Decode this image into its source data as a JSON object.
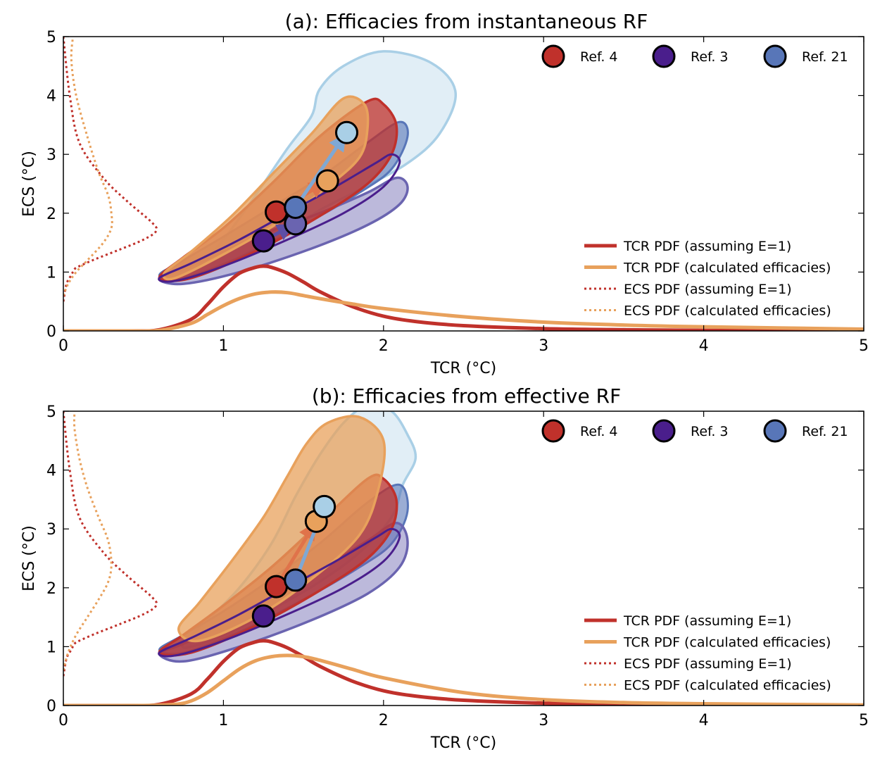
{
  "chart_data": [
    {
      "type": "line",
      "title": "(a): Efficacies from instantaneous RF",
      "xlabel": "TCR ($^\\circ$C)",
      "ylabel": "ECS ($^\\circ$C)",
      "xlabel_text": "TCR (°C)",
      "ylabel_text": "ECS (°C)",
      "xlim": [
        0,
        5
      ],
      "ylim": [
        0,
        5
      ],
      "xticks": [
        "0",
        "1",
        "2",
        "3",
        "4",
        "5"
      ],
      "yticks": [
        "0",
        "1",
        "2",
        "3",
        "4",
        "5"
      ],
      "grid": false,
      "markers_legend": [
        "Ref. 4",
        "Ref. 3",
        "Ref. 21"
      ],
      "markers_legend_position": "top-right",
      "lines_legend": [
        "TCR PDF (assuming E=1)",
        "TCR PDF (calculated efficacies)",
        "ECS PDF (assuming E=1)",
        "ECS PDF (calculated efficacies)"
      ],
      "lines_legend_position": "lower-right",
      "points": [
        {
          "ref": "Ref. 4",
          "variant": "assuming E=1",
          "x": 1.33,
          "y": 2.02
        },
        {
          "ref": "Ref. 4",
          "variant": "calculated efficacies",
          "x": 1.65,
          "y": 2.55
        },
        {
          "ref": "Ref. 3",
          "variant": "assuming E=1",
          "x": 1.25,
          "y": 1.53
        },
        {
          "ref": "Ref. 3",
          "variant": "calculated efficacies",
          "x": 1.45,
          "y": 1.82
        },
        {
          "ref": "Ref. 21",
          "variant": "assuming E=1",
          "x": 1.45,
          "y": 2.1
        },
        {
          "ref": "Ref. 21",
          "variant": "calculated efficacies",
          "x": 1.77,
          "y": 3.37
        }
      ],
      "series": [
        {
          "name": "TCR PDF (assuming E=1)",
          "x": [
            0,
            0.4,
            0.6,
            0.8,
            0.9,
            1.0,
            1.1,
            1.2,
            1.25,
            1.3,
            1.4,
            1.5,
            1.6,
            1.8,
            2.0,
            2.2,
            2.5,
            3.0,
            3.5,
            4.0,
            5.0
          ],
          "y": [
            0,
            0,
            0.02,
            0.2,
            0.45,
            0.75,
            0.98,
            1.08,
            1.1,
            1.08,
            0.98,
            0.83,
            0.67,
            0.42,
            0.25,
            0.16,
            0.09,
            0.04,
            0.02,
            0.01,
            0
          ]
        },
        {
          "name": "TCR PDF (calculated efficacies)",
          "x": [
            0,
            0.4,
            0.6,
            0.8,
            0.9,
            1.0,
            1.1,
            1.2,
            1.3,
            1.4,
            1.5,
            1.6,
            1.8,
            2.0,
            2.5,
            3.0,
            3.5,
            4.0,
            5.0
          ],
          "y": [
            0,
            0,
            0.01,
            0.13,
            0.28,
            0.43,
            0.55,
            0.63,
            0.66,
            0.65,
            0.6,
            0.55,
            0.46,
            0.38,
            0.24,
            0.15,
            0.1,
            0.07,
            0.03
          ]
        },
        {
          "name": "ECS PDF (assuming E=1)",
          "x": [
            0,
            0.02,
            0.05,
            0.07,
            0.1,
            0.2,
            0.35,
            0.5,
            0.58,
            0.55,
            0.4,
            0.25,
            0.1,
            0.04,
            0
          ],
          "y": [
            0.5,
            0.8,
            0.95,
            1.05,
            1.1,
            1.22,
            1.38,
            1.55,
            1.7,
            1.85,
            2.2,
            2.6,
            3.2,
            4.0,
            5.0
          ]
        },
        {
          "name": "ECS PDF (calculated efficacies)",
          "x": [
            0,
            0.03,
            0.08,
            0.15,
            0.25,
            0.3,
            0.3,
            0.28,
            0.22,
            0.15,
            0.08,
            0.05,
            0.06
          ],
          "y": [
            0.6,
            0.8,
            1.0,
            1.2,
            1.5,
            1.75,
            2.0,
            2.3,
            2.7,
            3.3,
            4.0,
            4.6,
            5.0
          ]
        }
      ],
      "regions": [
        {
          "ref": "Ref. 21",
          "variant": "calculated efficacies",
          "x": [
            0.75,
            0.85,
            1.0,
            1.2,
            1.4,
            1.55,
            1.6,
            1.75,
            2.0,
            2.3,
            2.45,
            2.35,
            2.15,
            1.85,
            1.6,
            1.4,
            1.1,
            0.85,
            0.75
          ],
          "y": [
            0.95,
            1.1,
            1.55,
            2.3,
            3.1,
            3.65,
            4.1,
            4.5,
            4.75,
            4.55,
            4.05,
            3.35,
            2.85,
            2.4,
            2.05,
            1.7,
            1.25,
            0.95,
            0.95
          ]
        },
        {
          "ref": "Ref. 21",
          "variant": "assuming E=1",
          "x": [
            0.6,
            0.75,
            1.0,
            1.3,
            1.6,
            1.9,
            2.1,
            2.15,
            2.05,
            1.85,
            1.5,
            1.1,
            0.75,
            0.6
          ],
          "y": [
            0.95,
            1.2,
            1.6,
            2.1,
            2.6,
            3.2,
            3.55,
            3.3,
            2.75,
            2.35,
            1.8,
            1.25,
            0.9,
            0.95
          ]
        },
        {
          "ref": "Ref. 3",
          "variant": "calculated efficacies",
          "x": [
            0.6,
            0.75,
            1.0,
            1.3,
            1.6,
            1.9,
            2.08,
            2.15,
            2.1,
            1.9,
            1.55,
            1.1,
            0.75,
            0.6
          ],
          "y": [
            0.88,
            1.05,
            1.35,
            1.7,
            2.0,
            2.35,
            2.6,
            2.45,
            2.15,
            1.8,
            1.4,
            1.0,
            0.8,
            0.88
          ]
        },
        {
          "ref": "Ref. 4",
          "variant": "assuming E=1",
          "x": [
            0.6,
            0.75,
            1.0,
            1.3,
            1.6,
            1.9,
            2.0,
            2.08,
            2.05,
            1.9,
            1.6,
            1.2,
            0.8,
            0.6
          ],
          "y": [
            0.9,
            1.25,
            1.75,
            2.5,
            3.3,
            3.9,
            3.85,
            3.5,
            3.0,
            2.5,
            1.95,
            1.35,
            0.9,
            0.9
          ]
        },
        {
          "ref": "Ref. 4",
          "variant": "calculated efficacies",
          "x": [
            0.63,
            0.8,
            1.05,
            1.3,
            1.55,
            1.75,
            1.88,
            1.9,
            1.85,
            1.65,
            1.35,
            1.0,
            0.7,
            0.63
          ],
          "y": [
            0.98,
            1.35,
            1.95,
            2.65,
            3.35,
            3.95,
            3.85,
            3.45,
            2.95,
            2.45,
            1.85,
            1.3,
            0.9,
            0.98
          ]
        },
        {
          "ref": "Ref. 3",
          "variant": "assuming E=1",
          "x": [
            0.6,
            0.8,
            1.1,
            1.4,
            1.7,
            1.95,
            2.05,
            2.1,
            2.0,
            1.75,
            1.4,
            1.0,
            0.7,
            0.6
          ],
          "y": [
            0.9,
            1.15,
            1.55,
            2.0,
            2.45,
            2.85,
            3.0,
            2.85,
            2.45,
            2.0,
            1.55,
            1.1,
            0.85,
            0.9
          ]
        }
      ]
    },
    {
      "type": "line",
      "title": "(b): Efficacies from effective RF",
      "xlabel": "TCR ($^\\circ$C)",
      "ylabel": "ECS ($^\\circ$C)",
      "xlabel_text": "TCR (°C)",
      "ylabel_text": "ECS (°C)",
      "xlim": [
        0,
        5
      ],
      "ylim": [
        0,
        5
      ],
      "xticks": [
        "0",
        "1",
        "2",
        "3",
        "4",
        "5"
      ],
      "yticks": [
        "0",
        "1",
        "2",
        "3",
        "4",
        "5"
      ],
      "grid": false,
      "markers_legend": [
        "Ref. 4",
        "Ref. 3",
        "Ref. 21"
      ],
      "markers_legend_position": "top-right",
      "lines_legend": [
        "TCR PDF (assuming E=1)",
        "TCR PDF (calculated efficacies)",
        "ECS PDF (assuming E=1)",
        "ECS PDF (calculated efficacies)"
      ],
      "lines_legend_position": "lower-right",
      "points": [
        {
          "ref": "Ref. 4",
          "variant": "assuming E=1",
          "x": 1.33,
          "y": 2.02
        },
        {
          "ref": "Ref. 4",
          "variant": "calculated efficacies",
          "x": 1.58,
          "y": 3.13
        },
        {
          "ref": "Ref. 3",
          "variant": "assuming E=1",
          "x": 1.25,
          "y": 1.52
        },
        {
          "ref": "Ref. 21",
          "variant": "assuming E=1",
          "x": 1.45,
          "y": 2.13
        },
        {
          "ref": "Ref. 21",
          "variant": "calculated efficacies",
          "x": 1.63,
          "y": 3.38
        }
      ],
      "series": [
        {
          "name": "TCR PDF (assuming E=1)",
          "x": [
            0,
            0.4,
            0.6,
            0.8,
            0.9,
            1.0,
            1.1,
            1.2,
            1.25,
            1.3,
            1.4,
            1.5,
            1.6,
            1.8,
            2.0,
            2.2,
            2.5,
            3.0,
            3.5,
            4.0,
            5.0
          ],
          "y": [
            0,
            0,
            0.02,
            0.2,
            0.45,
            0.75,
            0.98,
            1.08,
            1.1,
            1.08,
            0.98,
            0.83,
            0.67,
            0.42,
            0.25,
            0.16,
            0.09,
            0.04,
            0.02,
            0.01,
            0
          ]
        },
        {
          "name": "TCR PDF (calculated efficacies)",
          "x": [
            0,
            0.5,
            0.7,
            0.8,
            0.9,
            1.0,
            1.1,
            1.2,
            1.3,
            1.4,
            1.5,
            1.6,
            1.8,
            2.0,
            2.5,
            3.0,
            3.5,
            4.0,
            5.0
          ],
          "y": [
            0,
            0,
            0.02,
            0.08,
            0.22,
            0.42,
            0.62,
            0.76,
            0.83,
            0.85,
            0.83,
            0.77,
            0.62,
            0.47,
            0.22,
            0.1,
            0.05,
            0.03,
            0.01
          ]
        },
        {
          "name": "ECS PDF (assuming E=1)",
          "x": [
            0,
            0.02,
            0.05,
            0.07,
            0.1,
            0.2,
            0.35,
            0.5,
            0.58,
            0.55,
            0.4,
            0.25,
            0.1,
            0.04,
            0
          ],
          "y": [
            0.5,
            0.8,
            0.95,
            1.05,
            1.1,
            1.22,
            1.38,
            1.55,
            1.7,
            1.85,
            2.2,
            2.6,
            3.2,
            4.0,
            5.0
          ]
        },
        {
          "name": "ECS PDF (calculated efficacies)",
          "x": [
            0,
            0.03,
            0.08,
            0.15,
            0.22,
            0.28,
            0.3,
            0.28,
            0.22,
            0.15,
            0.1,
            0.07,
            0.07
          ],
          "y": [
            0.6,
            0.9,
            1.2,
            1.5,
            1.8,
            2.1,
            2.4,
            2.8,
            3.2,
            3.7,
            4.2,
            4.7,
            5.0
          ]
        }
      ],
      "regions": [
        {
          "ref": "Ref. 21",
          "variant": "calculated efficacies",
          "x": [
            0.75,
            0.9,
            1.1,
            1.3,
            1.45,
            1.6,
            1.75,
            1.9,
            2.05,
            2.15,
            2.2,
            2.12,
            2.05,
            1.85,
            1.6,
            1.35,
            1.05,
            0.8,
            0.75
          ],
          "y": [
            1.05,
            1.45,
            2.0,
            2.75,
            3.55,
            4.25,
            4.8,
            5.1,
            5.0,
            4.6,
            4.2,
            3.75,
            3.2,
            2.6,
            2.1,
            1.7,
            1.25,
            1.0,
            1.05
          ]
        },
        {
          "ref": "Ref. 21",
          "variant": "assuming E=1",
          "x": [
            0.6,
            0.75,
            1.0,
            1.3,
            1.6,
            1.9,
            2.1,
            2.15,
            2.05,
            1.85,
            1.5,
            1.1,
            0.75,
            0.6
          ],
          "y": [
            0.95,
            1.2,
            1.6,
            2.15,
            2.75,
            3.45,
            3.75,
            3.3,
            2.75,
            2.35,
            1.8,
            1.25,
            0.9,
            0.95
          ]
        },
        {
          "ref": "Ref. 3",
          "variant": "calculated efficacies",
          "x": [
            0.6,
            0.75,
            1.0,
            1.3,
            1.6,
            1.9,
            2.08,
            2.15,
            2.1,
            1.9,
            1.55,
            1.1,
            0.75,
            0.6
          ],
          "y": [
            0.88,
            1.05,
            1.4,
            1.85,
            2.3,
            2.8,
            3.1,
            2.8,
            2.35,
            1.9,
            1.45,
            1.0,
            0.75,
            0.88
          ]
        },
        {
          "ref": "Ref. 4",
          "variant": "assuming E=1",
          "x": [
            0.6,
            0.75,
            1.0,
            1.3,
            1.6,
            1.9,
            2.0,
            2.08,
            2.05,
            1.9,
            1.6,
            1.2,
            0.8,
            0.6
          ],
          "y": [
            0.9,
            1.2,
            1.7,
            2.35,
            3.1,
            3.85,
            3.85,
            3.5,
            3.0,
            2.5,
            1.95,
            1.35,
            0.9,
            0.9
          ]
        },
        {
          "ref": "Ref. 4",
          "variant": "calculated efficacies",
          "x": [
            0.72,
            0.85,
            1.05,
            1.25,
            1.4,
            1.52,
            1.65,
            1.85,
            2.0,
            1.97,
            1.85,
            1.55,
            1.2,
            0.85,
            0.72
          ],
          "y": [
            1.3,
            1.75,
            2.45,
            3.2,
            3.9,
            4.45,
            4.8,
            4.9,
            4.5,
            3.7,
            2.9,
            2.15,
            1.5,
            1.1,
            1.3
          ]
        },
        {
          "ref": "Ref. 3",
          "variant": "assuming E=1",
          "x": [
            0.6,
            0.8,
            1.1,
            1.4,
            1.7,
            1.95,
            2.05,
            2.1,
            2.0,
            1.75,
            1.4,
            1.0,
            0.7,
            0.6
          ],
          "y": [
            0.9,
            1.15,
            1.55,
            2.0,
            2.45,
            2.85,
            3.0,
            2.85,
            2.45,
            2.0,
            1.55,
            1.1,
            0.85,
            0.9
          ]
        }
      ]
    }
  ],
  "colors": {
    "ref4": "#c0312b",
    "ref4_light": "#e8a15c",
    "ref3": "#4a1e8c",
    "ref3_light": "#6a64b0",
    "ref21": "#5876b8",
    "ref21_light": "#a9cfe6",
    "arrow_ref4": "#e0734a",
    "arrow_ref3": "#5d4ea6",
    "arrow_ref21": "#7fa8d4"
  }
}
